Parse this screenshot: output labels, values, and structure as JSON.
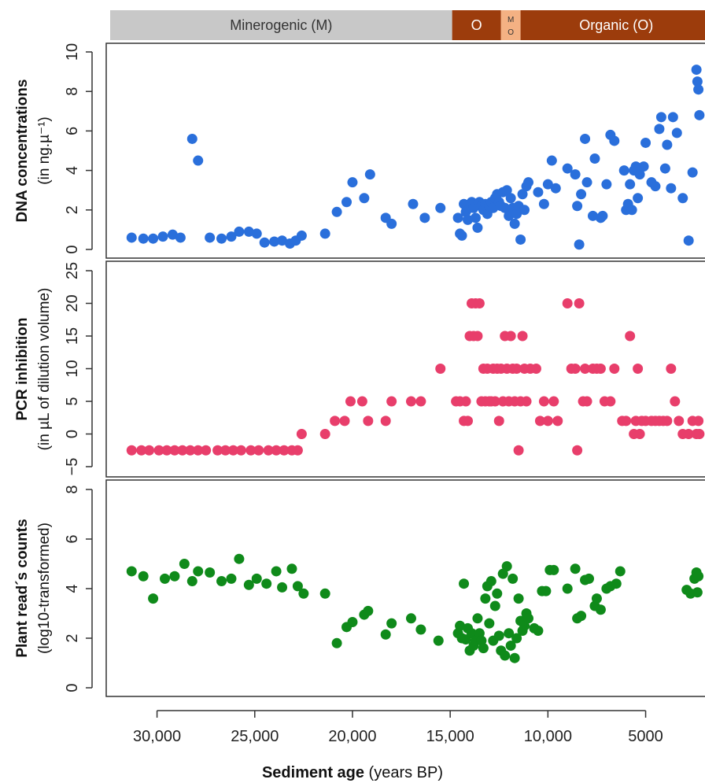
{
  "bands": [
    {
      "label": "Minerogenic (M)",
      "from": 32600,
      "to": 14900,
      "color": "#c8c8c8",
      "text_color": "#333333"
    },
    {
      "label": "O",
      "from": 14900,
      "to": 12400,
      "color": "#9c3c0c",
      "text_color": "#ffffff"
    },
    {
      "label": "M O",
      "from": 12400,
      "to": 11400,
      "color": "#f4b183",
      "text_color": "#333333"
    },
    {
      "label": "Organic (O)",
      "from": 11400,
      "to": 1600,
      "color": "#9c3c0c",
      "text_color": "#ffffff"
    }
  ],
  "x_axis": {
    "label_bold": "Sediment age",
    "label_rest": " (years BP)",
    "ticks": [
      30000,
      25000,
      20000,
      15000,
      10000,
      5000
    ],
    "tick_labels": [
      "30,000",
      "25,000",
      "20,000",
      "15,000",
      "10,000",
      "5000"
    ],
    "reversed": true,
    "range": [
      32600,
      1600
    ]
  },
  "chart_data": [
    {
      "type": "scatter",
      "ylabel": "DNA concentrations",
      "ylabel_sub": "(in ng.µ⁻¹)",
      "ylim": [
        0,
        10
      ],
      "yticks": [
        0,
        2,
        4,
        6,
        8,
        10
      ],
      "ytick_labels": [
        "0",
        "2",
        "4",
        "6",
        "8",
        "10"
      ],
      "color": "#2a6fdb",
      "points": [
        [
          31300,
          0.6
        ],
        [
          30700,
          0.55
        ],
        [
          30200,
          0.55
        ],
        [
          29700,
          0.65
        ],
        [
          29200,
          0.75
        ],
        [
          28800,
          0.6
        ],
        [
          28200,
          5.6
        ],
        [
          27900,
          4.5
        ],
        [
          27300,
          0.6
        ],
        [
          26700,
          0.55
        ],
        [
          26200,
          0.65
        ],
        [
          25800,
          0.9
        ],
        [
          25300,
          0.9
        ],
        [
          24900,
          0.8
        ],
        [
          24500,
          0.35
        ],
        [
          24000,
          0.4
        ],
        [
          23600,
          0.45
        ],
        [
          23200,
          0.3
        ],
        [
          22900,
          0.45
        ],
        [
          22600,
          0.7
        ],
        [
          21400,
          0.8
        ],
        [
          20800,
          1.9
        ],
        [
          20300,
          2.4
        ],
        [
          20000,
          3.4
        ],
        [
          19400,
          2.6
        ],
        [
          19100,
          3.8
        ],
        [
          18300,
          1.6
        ],
        [
          18000,
          1.3
        ],
        [
          16900,
          2.3
        ],
        [
          16300,
          1.6
        ],
        [
          15500,
          2.1
        ],
        [
          14600,
          1.6
        ],
        [
          14500,
          0.8
        ],
        [
          14400,
          0.7
        ],
        [
          14300,
          2.3
        ],
        [
          14200,
          1.9
        ],
        [
          14100,
          1.5
        ],
        [
          14000,
          2.1
        ],
        [
          13900,
          2.4
        ],
        [
          13800,
          2.1
        ],
        [
          13700,
          1.6
        ],
        [
          13600,
          1.1
        ],
        [
          13500,
          2.4
        ],
        [
          13400,
          2.2
        ],
        [
          13300,
          2.0
        ],
        [
          13200,
          2.3
        ],
        [
          13100,
          1.8
        ],
        [
          13000,
          2.2
        ],
        [
          12900,
          2.4
        ],
        [
          12800,
          2.1
        ],
        [
          12700,
          2.6
        ],
        [
          12600,
          2.8
        ],
        [
          12500,
          2.4
        ],
        [
          12400,
          2.2
        ],
        [
          12300,
          2.9
        ],
        [
          12200,
          2.1
        ],
        [
          12100,
          3.0
        ],
        [
          12000,
          1.7
        ],
        [
          11900,
          2.6
        ],
        [
          11800,
          2.1
        ],
        [
          11700,
          1.3
        ],
        [
          11600,
          1.8
        ],
        [
          11500,
          2.2
        ],
        [
          11400,
          0.5
        ],
        [
          11300,
          2.8
        ],
        [
          11200,
          2.0
        ],
        [
          11100,
          3.2
        ],
        [
          11000,
          3.4
        ],
        [
          10500,
          2.9
        ],
        [
          10200,
          2.3
        ],
        [
          10000,
          3.3
        ],
        [
          9800,
          4.5
        ],
        [
          9600,
          3.1
        ],
        [
          9000,
          4.1
        ],
        [
          8600,
          3.8
        ],
        [
          8500,
          2.2
        ],
        [
          8400,
          0.25
        ],
        [
          8300,
          2.8
        ],
        [
          8100,
          5.6
        ],
        [
          8000,
          3.4
        ],
        [
          7700,
          1.7
        ],
        [
          7600,
          4.6
        ],
        [
          7300,
          1.6
        ],
        [
          7200,
          1.7
        ],
        [
          7000,
          3.3
        ],
        [
          6800,
          5.8
        ],
        [
          6600,
          5.5
        ],
        [
          6100,
          4.0
        ],
        [
          6000,
          2.0
        ],
        [
          5900,
          2.3
        ],
        [
          5800,
          3.3
        ],
        [
          5700,
          2.0
        ],
        [
          5600,
          4.0
        ],
        [
          5500,
          4.2
        ],
        [
          5400,
          2.6
        ],
        [
          5300,
          3.8
        ],
        [
          5100,
          4.2
        ],
        [
          5000,
          5.4
        ],
        [
          4700,
          3.4
        ],
        [
          4500,
          3.2
        ],
        [
          4300,
          6.1
        ],
        [
          4200,
          6.7
        ],
        [
          4000,
          4.1
        ],
        [
          3900,
          5.3
        ],
        [
          3700,
          3.1
        ],
        [
          3600,
          6.7
        ],
        [
          3400,
          5.9
        ],
        [
          3100,
          2.6
        ],
        [
          2800,
          0.45
        ],
        [
          2600,
          3.9
        ],
        [
          2400,
          9.1
        ],
        [
          2350,
          8.5
        ],
        [
          2300,
          8.1
        ],
        [
          2250,
          6.8
        ]
      ]
    },
    {
      "type": "scatter",
      "ylabel": "PCR inhibition",
      "ylabel_sub": "(in µL of dilution volume)",
      "ylim": [
        -5,
        25
      ],
      "yticks": [
        -5,
        0,
        5,
        10,
        15,
        20,
        25
      ],
      "ytick_labels": [
        "−5",
        "0",
        "5",
        "10",
        "15",
        "20",
        "25"
      ],
      "color": "#e83e6b",
      "points": [
        [
          31300,
          -2.5
        ],
        [
          30800,
          -2.5
        ],
        [
          30400,
          -2.5
        ],
        [
          29900,
          -2.5
        ],
        [
          29500,
          -2.5
        ],
        [
          29100,
          -2.5
        ],
        [
          28700,
          -2.5
        ],
        [
          28300,
          -2.5
        ],
        [
          27900,
          -2.5
        ],
        [
          27500,
          -2.5
        ],
        [
          26900,
          -2.5
        ],
        [
          26500,
          -2.5
        ],
        [
          26100,
          -2.5
        ],
        [
          25700,
          -2.5
        ],
        [
          25200,
          -2.5
        ],
        [
          24800,
          -2.5
        ],
        [
          24300,
          -2.5
        ],
        [
          23900,
          -2.5
        ],
        [
          23500,
          -2.5
        ],
        [
          23100,
          -2.5
        ],
        [
          22800,
          -2.5
        ],
        [
          22600,
          0
        ],
        [
          21400,
          0
        ],
        [
          20900,
          2
        ],
        [
          20400,
          2
        ],
        [
          20100,
          5
        ],
        [
          19500,
          5
        ],
        [
          19200,
          2
        ],
        [
          18300,
          2
        ],
        [
          18000,
          5
        ],
        [
          17000,
          5
        ],
        [
          16500,
          5
        ],
        [
          15500,
          10
        ],
        [
          14700,
          5
        ],
        [
          14500,
          5
        ],
        [
          14300,
          2
        ],
        [
          14200,
          5
        ],
        [
          14100,
          2
        ],
        [
          14000,
          15
        ],
        [
          13900,
          20
        ],
        [
          13800,
          15
        ],
        [
          13700,
          20
        ],
        [
          13600,
          15
        ],
        [
          13500,
          20
        ],
        [
          13400,
          5
        ],
        [
          13300,
          10
        ],
        [
          13200,
          5
        ],
        [
          13100,
          10
        ],
        [
          13000,
          5
        ],
        [
          12900,
          5
        ],
        [
          12800,
          10
        ],
        [
          12700,
          5
        ],
        [
          12600,
          10
        ],
        [
          12500,
          2
        ],
        [
          12400,
          10
        ],
        [
          12300,
          5
        ],
        [
          12200,
          15
        ],
        [
          12100,
          10
        ],
        [
          12000,
          5
        ],
        [
          11900,
          15
        ],
        [
          11800,
          10
        ],
        [
          11700,
          5
        ],
        [
          11600,
          10
        ],
        [
          11500,
          -2.5
        ],
        [
          11400,
          5
        ],
        [
          11300,
          15
        ],
        [
          11200,
          10
        ],
        [
          11100,
          5
        ],
        [
          10900,
          10
        ],
        [
          10600,
          10
        ],
        [
          10400,
          2
        ],
        [
          10200,
          5
        ],
        [
          10000,
          2
        ],
        [
          9700,
          5
        ],
        [
          9500,
          2
        ],
        [
          9000,
          20
        ],
        [
          8800,
          10
        ],
        [
          8600,
          10
        ],
        [
          8500,
          -2.5
        ],
        [
          8400,
          20
        ],
        [
          8200,
          5
        ],
        [
          8100,
          10
        ],
        [
          8000,
          5
        ],
        [
          7700,
          10
        ],
        [
          7500,
          10
        ],
        [
          7300,
          10
        ],
        [
          7100,
          5
        ],
        [
          6800,
          5
        ],
        [
          6600,
          10
        ],
        [
          6200,
          2
        ],
        [
          6000,
          2
        ],
        [
          5800,
          15
        ],
        [
          5600,
          0
        ],
        [
          5500,
          2
        ],
        [
          5400,
          10
        ],
        [
          5300,
          0
        ],
        [
          5200,
          2
        ],
        [
          5000,
          2
        ],
        [
          4700,
          2
        ],
        [
          4500,
          2
        ],
        [
          4300,
          2
        ],
        [
          4100,
          2
        ],
        [
          3900,
          2
        ],
        [
          3700,
          10
        ],
        [
          3500,
          5
        ],
        [
          3300,
          2
        ],
        [
          3100,
          0
        ],
        [
          2800,
          0
        ],
        [
          2600,
          2
        ],
        [
          2400,
          0
        ],
        [
          2300,
          2
        ],
        [
          2250,
          0
        ]
      ]
    },
    {
      "type": "scatter",
      "ylabel": "Plant read´s counts",
      "ylabel_sub": "(log10-transformed)",
      "ylim": [
        0,
        8
      ],
      "yticks": [
        0,
        2,
        4,
        6,
        8
      ],
      "ytick_labels": [
        "0",
        "2",
        "4",
        "6",
        "8"
      ],
      "color": "#0f8a1a",
      "points": [
        [
          31300,
          4.7
        ],
        [
          30700,
          4.5
        ],
        [
          30200,
          3.6
        ],
        [
          29600,
          4.4
        ],
        [
          29100,
          4.5
        ],
        [
          28600,
          5.0
        ],
        [
          28200,
          4.3
        ],
        [
          27900,
          4.7
        ],
        [
          27300,
          4.65
        ],
        [
          26700,
          4.3
        ],
        [
          26200,
          4.4
        ],
        [
          25800,
          5.2
        ],
        [
          25300,
          4.15
        ],
        [
          24900,
          4.4
        ],
        [
          24400,
          4.2
        ],
        [
          23900,
          4.7
        ],
        [
          23600,
          4.05
        ],
        [
          23100,
          4.8
        ],
        [
          22800,
          4.1
        ],
        [
          22500,
          3.8
        ],
        [
          21400,
          3.8
        ],
        [
          20800,
          1.8
        ],
        [
          20300,
          2.45
        ],
        [
          20000,
          2.65
        ],
        [
          19400,
          2.95
        ],
        [
          19200,
          3.1
        ],
        [
          18300,
          2.15
        ],
        [
          18000,
          2.6
        ],
        [
          17000,
          2.8
        ],
        [
          16500,
          2.35
        ],
        [
          15600,
          1.9
        ],
        [
          14600,
          2.2
        ],
        [
          14500,
          2.5
        ],
        [
          14400,
          2.0
        ],
        [
          14300,
          4.2
        ],
        [
          14200,
          1.95
        ],
        [
          14100,
          2.4
        ],
        [
          14000,
          1.5
        ],
        [
          13900,
          2.2
        ],
        [
          13800,
          1.7
        ],
        [
          13700,
          1.9
        ],
        [
          13600,
          2.8
        ],
        [
          13500,
          2.2
        ],
        [
          13400,
          1.9
        ],
        [
          13300,
          1.6
        ],
        [
          13200,
          3.6
        ],
        [
          13100,
          4.1
        ],
        [
          13000,
          2.6
        ],
        [
          12900,
          4.3
        ],
        [
          12800,
          1.9
        ],
        [
          12700,
          3.3
        ],
        [
          12600,
          3.8
        ],
        [
          12500,
          2.1
        ],
        [
          12400,
          1.5
        ],
        [
          12300,
          4.6
        ],
        [
          12200,
          1.3
        ],
        [
          12100,
          4.9
        ],
        [
          12000,
          2.2
        ],
        [
          11900,
          1.7
        ],
        [
          11800,
          4.4
        ],
        [
          11700,
          1.2
        ],
        [
          11600,
          2.0
        ],
        [
          11500,
          3.6
        ],
        [
          11400,
          2.7
        ],
        [
          11300,
          2.3
        ],
        [
          11200,
          2.5
        ],
        [
          11100,
          3.0
        ],
        [
          11000,
          2.8
        ],
        [
          10700,
          2.4
        ],
        [
          10500,
          2.3
        ],
        [
          10300,
          3.9
        ],
        [
          10100,
          3.9
        ],
        [
          9900,
          4.75
        ],
        [
          9700,
          4.75
        ],
        [
          9000,
          4.0
        ],
        [
          8600,
          4.8
        ],
        [
          8500,
          2.8
        ],
        [
          8300,
          2.9
        ],
        [
          8100,
          4.35
        ],
        [
          7900,
          4.4
        ],
        [
          7600,
          3.3
        ],
        [
          7500,
          3.6
        ],
        [
          7300,
          3.15
        ],
        [
          7000,
          4.0
        ],
        [
          6800,
          4.1
        ],
        [
          6500,
          4.2
        ],
        [
          6300,
          4.7
        ],
        [
          2900,
          3.95
        ],
        [
          2700,
          3.8
        ],
        [
          2500,
          4.4
        ],
        [
          2400,
          4.65
        ],
        [
          2350,
          3.85
        ],
        [
          2300,
          4.5
        ]
      ]
    }
  ]
}
